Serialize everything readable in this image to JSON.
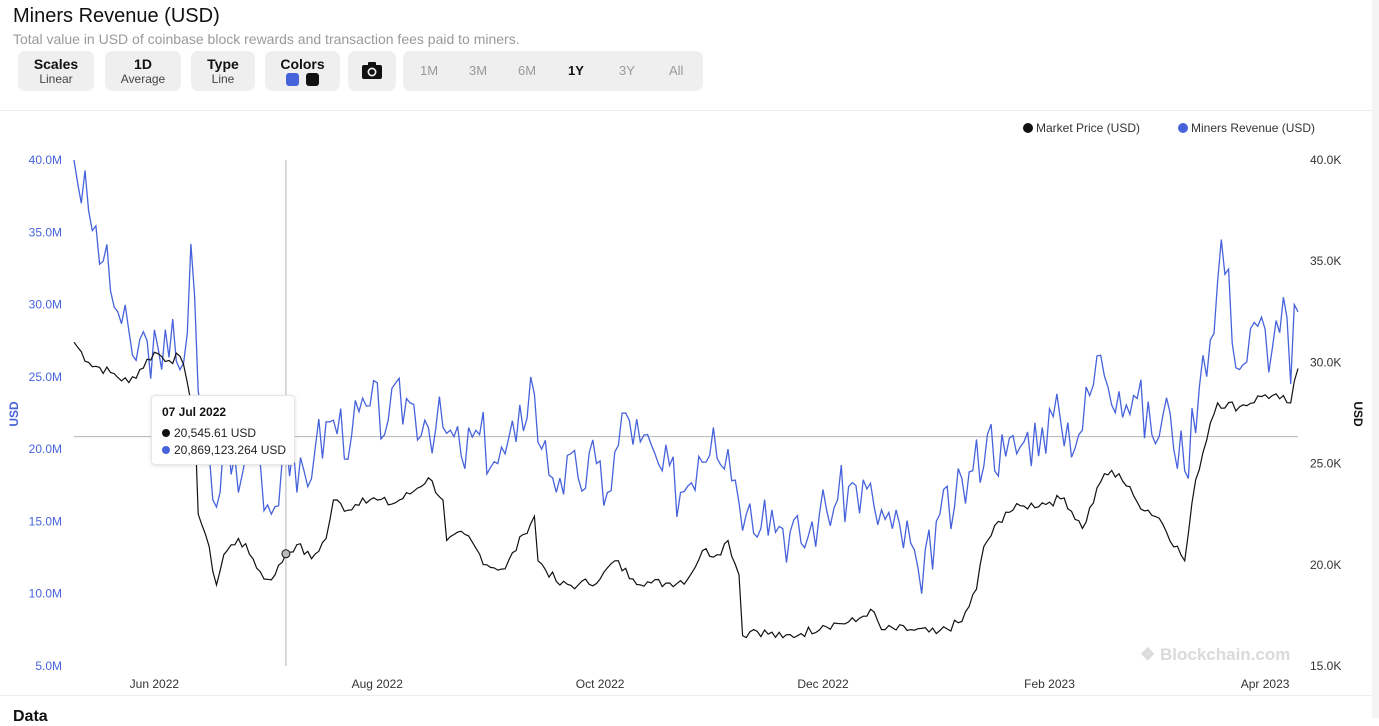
{
  "header": {
    "title": "Miners Revenue (USD)",
    "subtitle": "Total value in USD of coinbase block rewards and transaction fees paid to miners."
  },
  "toolbar": {
    "scales": {
      "label": "Scales",
      "value": "Linear"
    },
    "period": {
      "label": "1D",
      "value": "Average"
    },
    "type": {
      "label": "Type",
      "value": "Line"
    },
    "colors": {
      "label": "Colors",
      "swatch1": "#4763dc",
      "swatch2": "#111111"
    },
    "camera_icon": "camera-icon",
    "ranges": [
      "1M",
      "3M",
      "6M",
      "1Y",
      "3Y",
      "All"
    ],
    "active_range": "1Y"
  },
  "tooltip": {
    "date": "07 Jul 2022",
    "price": "20,545.61 USD",
    "revenue": "20,869,123.264 USD"
  },
  "watermark": "Blockchain.com",
  "bottom_heading": "Data",
  "chart_data": {
    "type": "line",
    "legend_position": "top-right",
    "grid": false,
    "x_range": [
      "2022-05-10",
      "2023-04-10"
    ],
    "x_tick_labels": [
      "Jun 2022",
      "Aug 2022",
      "Oct 2022",
      "Dec 2022",
      "Feb 2023",
      "Apr 2023"
    ],
    "y_left": {
      "label": "USD",
      "range": [
        5000000,
        40000000
      ],
      "tick_labels": [
        "40.0M",
        "35.0M",
        "30.0M",
        "25.0M",
        "20.0M",
        "15.0M",
        "10.0M",
        "5.0M"
      ]
    },
    "y_right": {
      "label": "USD",
      "range": [
        15000,
        40000
      ],
      "tick_labels": [
        "40.0K",
        "35.0K",
        "30.0K",
        "25.0K",
        "20.0K",
        "15.0K"
      ]
    },
    "crosshair": {
      "date": "2022-07-07",
      "revenue": 20869123.264,
      "price": 20545.61
    },
    "series": [
      {
        "name": "Market Price (USD)",
        "axis": "right",
        "color": "#111111",
        "points": [
          [
            "2022-05-10",
            31000
          ],
          [
            "2022-05-14",
            30000
          ],
          [
            "2022-05-20",
            29500
          ],
          [
            "2022-05-25",
            29000
          ],
          [
            "2022-06-01",
            30500
          ],
          [
            "2022-06-05",
            30100
          ],
          [
            "2022-06-08",
            30300
          ],
          [
            "2022-06-10",
            29000
          ],
          [
            "2022-06-12",
            27500
          ],
          [
            "2022-06-13",
            22500
          ],
          [
            "2022-06-15",
            21500
          ],
          [
            "2022-06-18",
            19000
          ],
          [
            "2022-06-20",
            20500
          ],
          [
            "2022-06-24",
            21300
          ],
          [
            "2022-06-28",
            20300
          ],
          [
            "2022-07-01",
            19300
          ],
          [
            "2022-07-04",
            19500
          ],
          [
            "2022-07-07",
            20546
          ],
          [
            "2022-07-10",
            21000
          ],
          [
            "2022-07-14",
            20300
          ],
          [
            "2022-07-18",
            21300
          ],
          [
            "2022-07-20",
            23200
          ],
          [
            "2022-07-24",
            22700
          ],
          [
            "2022-07-28",
            23300
          ],
          [
            "2022-08-01",
            23200
          ],
          [
            "2022-08-05",
            23000
          ],
          [
            "2022-08-10",
            23500
          ],
          [
            "2022-08-15",
            24300
          ],
          [
            "2022-08-19",
            23200
          ],
          [
            "2022-08-20",
            21200
          ],
          [
            "2022-08-25",
            21500
          ],
          [
            "2022-08-31",
            20000
          ],
          [
            "2022-09-05",
            19800
          ],
          [
            "2022-09-10",
            21500
          ],
          [
            "2022-09-13",
            22400
          ],
          [
            "2022-09-14",
            20200
          ],
          [
            "2022-09-20",
            19000
          ],
          [
            "2022-09-25",
            19000
          ],
          [
            "2022-10-01",
            19300
          ],
          [
            "2022-10-05",
            20200
          ],
          [
            "2022-10-10",
            19300
          ],
          [
            "2022-10-15",
            19100
          ],
          [
            "2022-10-20",
            19100
          ],
          [
            "2022-10-25",
            19300
          ],
          [
            "2022-10-29",
            20700
          ],
          [
            "2022-11-02",
            20500
          ],
          [
            "2022-11-05",
            21200
          ],
          [
            "2022-11-08",
            19500
          ],
          [
            "2022-11-09",
            16500
          ],
          [
            "2022-11-12",
            16800
          ],
          [
            "2022-11-20",
            16400
          ],
          [
            "2022-11-25",
            16600
          ],
          [
            "2022-12-01",
            17000
          ],
          [
            "2022-12-05",
            17100
          ],
          [
            "2022-12-10",
            17200
          ],
          [
            "2022-12-14",
            17800
          ],
          [
            "2022-12-17",
            16800
          ],
          [
            "2022-12-25",
            16800
          ],
          [
            "2023-01-01",
            16600
          ],
          [
            "2023-01-08",
            17200
          ],
          [
            "2023-01-12",
            18800
          ],
          [
            "2023-01-14",
            20900
          ],
          [
            "2023-01-20",
            22600
          ],
          [
            "2023-01-25",
            22900
          ],
          [
            "2023-02-01",
            23100
          ],
          [
            "2023-02-05",
            23300
          ],
          [
            "2023-02-10",
            21800
          ],
          [
            "2023-02-16",
            24500
          ],
          [
            "2023-02-20",
            24500
          ],
          [
            "2023-02-25",
            23100
          ],
          [
            "2023-03-03",
            22300
          ],
          [
            "2023-03-10",
            20200
          ],
          [
            "2023-03-13",
            24200
          ],
          [
            "2023-03-17",
            27000
          ],
          [
            "2023-03-19",
            28000
          ],
          [
            "2023-03-25",
            27800
          ],
          [
            "2023-04-01",
            28400
          ],
          [
            "2023-04-05",
            28200
          ],
          [
            "2023-04-08",
            28000
          ],
          [
            "2023-04-10",
            29700
          ]
        ]
      },
      {
        "name": "Miners Revenue (USD)",
        "axis": "left",
        "color": "#4763dc",
        "points": [
          [
            "2022-05-10",
            40000000
          ],
          [
            "2022-05-14",
            36500000
          ],
          [
            "2022-05-18",
            33000000
          ],
          [
            "2022-05-22",
            29500000
          ],
          [
            "2022-05-26",
            26500000
          ],
          [
            "2022-05-30",
            27500000
          ],
          [
            "2022-06-03",
            25500000
          ],
          [
            "2022-06-06",
            29000000
          ],
          [
            "2022-06-08",
            25500000
          ],
          [
            "2022-06-10",
            28000000
          ],
          [
            "2022-06-11",
            34200000
          ],
          [
            "2022-06-13",
            24000000
          ],
          [
            "2022-06-15",
            19500000
          ],
          [
            "2022-06-18",
            16000000
          ],
          [
            "2022-06-21",
            21500000
          ],
          [
            "2022-06-24",
            17000000
          ],
          [
            "2022-06-27",
            20500000
          ],
          [
            "2022-06-30",
            19000000
          ],
          [
            "2022-07-03",
            15500000
          ],
          [
            "2022-07-07",
            20869123
          ],
          [
            "2022-07-10",
            17000000
          ],
          [
            "2022-07-15",
            20000000
          ],
          [
            "2022-07-20",
            22000000
          ],
          [
            "2022-07-25",
            21000000
          ],
          [
            "2022-07-30",
            23000000
          ],
          [
            "2022-08-04",
            22000000
          ],
          [
            "2022-08-09",
            23500000
          ],
          [
            "2022-08-14",
            22000000
          ],
          [
            "2022-08-19",
            21500000
          ],
          [
            "2022-08-24",
            19500000
          ],
          [
            "2022-08-29",
            21000000
          ],
          [
            "2022-09-03",
            19000000
          ],
          [
            "2022-09-08",
            20500000
          ],
          [
            "2022-09-12",
            25000000
          ],
          [
            "2022-09-15",
            20000000
          ],
          [
            "2022-09-20",
            18000000
          ],
          [
            "2022-09-25",
            18000000
          ],
          [
            "2022-09-30",
            19000000
          ],
          [
            "2022-10-03",
            17000000
          ],
          [
            "2022-10-08",
            22500000
          ],
          [
            "2022-10-12",
            20500000
          ],
          [
            "2022-10-18",
            18500000
          ],
          [
            "2022-10-23",
            17000000
          ],
          [
            "2022-10-28",
            19500000
          ],
          [
            "2022-11-01",
            21500000
          ],
          [
            "2022-11-05",
            20000000
          ],
          [
            "2022-11-10",
            15500000
          ],
          [
            "2022-11-15",
            16500000
          ],
          [
            "2022-11-20",
            14500000
          ],
          [
            "2022-11-25",
            13500000
          ],
          [
            "2022-11-30",
            15500000
          ],
          [
            "2022-12-05",
            16500000
          ],
          [
            "2022-12-10",
            17500000
          ],
          [
            "2022-12-15",
            16000000
          ],
          [
            "2022-12-20",
            14500000
          ],
          [
            "2022-12-25",
            13500000
          ],
          [
            "2022-12-28",
            10000000
          ],
          [
            "2023-01-01",
            15000000
          ],
          [
            "2023-01-06",
            16000000
          ],
          [
            "2023-01-11",
            18500000
          ],
          [
            "2023-01-15",
            21000000
          ],
          [
            "2023-01-20",
            19500000
          ],
          [
            "2023-01-25",
            20500000
          ],
          [
            "2023-01-30",
            21500000
          ],
          [
            "2023-02-04",
            22000000
          ],
          [
            "2023-02-09",
            21000000
          ],
          [
            "2023-02-15",
            26500000
          ],
          [
            "2023-02-20",
            24000000
          ],
          [
            "2023-02-25",
            23500000
          ],
          [
            "2023-03-01",
            21000000
          ],
          [
            "2023-03-06",
            22500000
          ],
          [
            "2023-03-10",
            18500000
          ],
          [
            "2023-03-15",
            26500000
          ],
          [
            "2023-03-18",
            28000000
          ],
          [
            "2023-03-20",
            34500000
          ],
          [
            "2023-03-25",
            25500000
          ],
          [
            "2023-03-30",
            28500000
          ],
          [
            "2023-04-03",
            27000000
          ],
          [
            "2023-04-06",
            30500000
          ],
          [
            "2023-04-08",
            24500000
          ],
          [
            "2023-04-09",
            30000000
          ],
          [
            "2023-04-10",
            29500000
          ]
        ]
      }
    ]
  }
}
